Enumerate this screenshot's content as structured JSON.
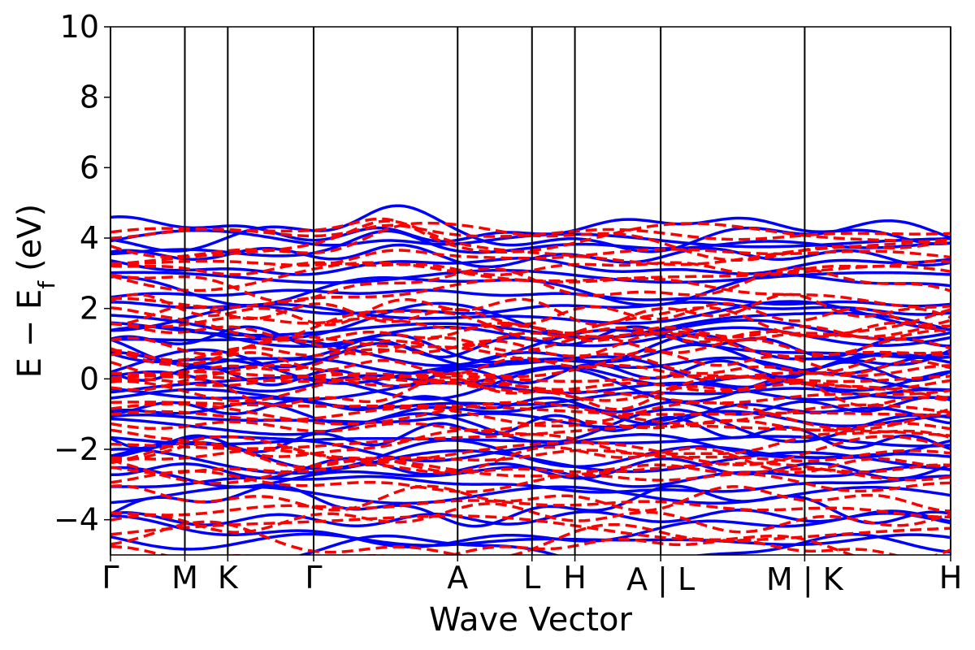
{
  "chart_data": {
    "type": "line",
    "title": "",
    "xlabel": "Wave Vector",
    "ylabel": "E − E",
    "ylabel_subscript": "f",
    "ylabel_unit": "(eV)",
    "ylim": [
      -5,
      10
    ],
    "yticks": [
      -4,
      -2,
      0,
      2,
      4,
      6,
      8,
      10
    ],
    "ytick_labels": [
      "−4",
      "−2",
      "0",
      "2",
      "4",
      "6",
      "8",
      "10"
    ],
    "xlim": [
      0,
      10
    ],
    "kpoints": [
      {
        "label": "Γ",
        "x": 0
      },
      {
        "label": "M",
        "x": 0.885
      },
      {
        "label": "K",
        "x": 1.396
      },
      {
        "label": "Γ",
        "x": 2.418
      },
      {
        "label": "A",
        "x": 4.132
      },
      {
        "label": "L",
        "x": 5.017
      },
      {
        "label": "H",
        "x": 5.528
      },
      {
        "label": "A | L",
        "x": 6.549
      },
      {
        "label": "M | K",
        "x": 8.263
      },
      {
        "label": "H",
        "x": 10
      }
    ],
    "series": [
      {
        "style": "solid",
        "color": "#0000ff"
      },
      {
        "style": "dashed",
        "color": "#ff0000"
      }
    ],
    "grid": false,
    "legend": "none"
  }
}
